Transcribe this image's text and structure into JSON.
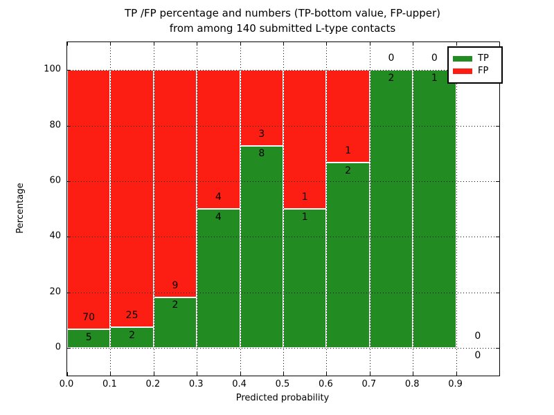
{
  "chart_data": {
    "type": "bar",
    "stacked": true,
    "normalized": "percentage",
    "title_line1": "TP /FP percentage and numbers (TP-bottom value, FP-upper)",
    "title_line2": "from among 140 submitted L-type contacts",
    "xlabel": "Predicted probability",
    "ylabel": "Percentage",
    "xlim": [
      0,
      1.0
    ],
    "ylim": [
      -10,
      110
    ],
    "xtick_values": [
      0.0,
      0.1,
      0.2,
      0.3,
      0.4,
      0.5,
      0.6,
      0.7,
      0.8,
      0.9
    ],
    "xtick_labels": [
      "0.0",
      "0.1",
      "0.2",
      "0.3",
      "0.4",
      "0.5",
      "0.6",
      "0.7",
      "0.8",
      "0.9"
    ],
    "ytick_values": [
      0,
      20,
      40,
      60,
      80,
      100
    ],
    "ytick_labels": [
      "0",
      "20",
      "40",
      "60",
      "80",
      "100"
    ],
    "grid": {
      "on": true,
      "style": "dotted",
      "color": "#000000"
    },
    "total_contacts": 140,
    "colors": {
      "tp": "#228b22",
      "fp": "#fc1d13",
      "bar_edge": "#ffffff"
    },
    "legend": {
      "position": "upper-right",
      "items": [
        {
          "label": "TP",
          "color": "#228b22"
        },
        {
          "label": "FP",
          "color": "#fc1d13"
        }
      ]
    },
    "bins": [
      {
        "range": [
          0.0,
          0.1
        ],
        "tp": 5,
        "fp": 70
      },
      {
        "range": [
          0.1,
          0.2
        ],
        "tp": 2,
        "fp": 25
      },
      {
        "range": [
          0.2,
          0.3
        ],
        "tp": 2,
        "fp": 9
      },
      {
        "range": [
          0.3,
          0.4
        ],
        "tp": 4,
        "fp": 4
      },
      {
        "range": [
          0.4,
          0.5
        ],
        "tp": 8,
        "fp": 3
      },
      {
        "range": [
          0.5,
          0.6
        ],
        "tp": 1,
        "fp": 1
      },
      {
        "range": [
          0.6,
          0.7
        ],
        "tp": 2,
        "fp": 1
      },
      {
        "range": [
          0.7,
          0.8
        ],
        "tp": 2,
        "fp": 0
      },
      {
        "range": [
          0.8,
          0.9
        ],
        "tp": 1,
        "fp": 0
      },
      {
        "range": [
          0.9,
          1.0
        ],
        "tp": 0,
        "fp": 0
      }
    ]
  }
}
